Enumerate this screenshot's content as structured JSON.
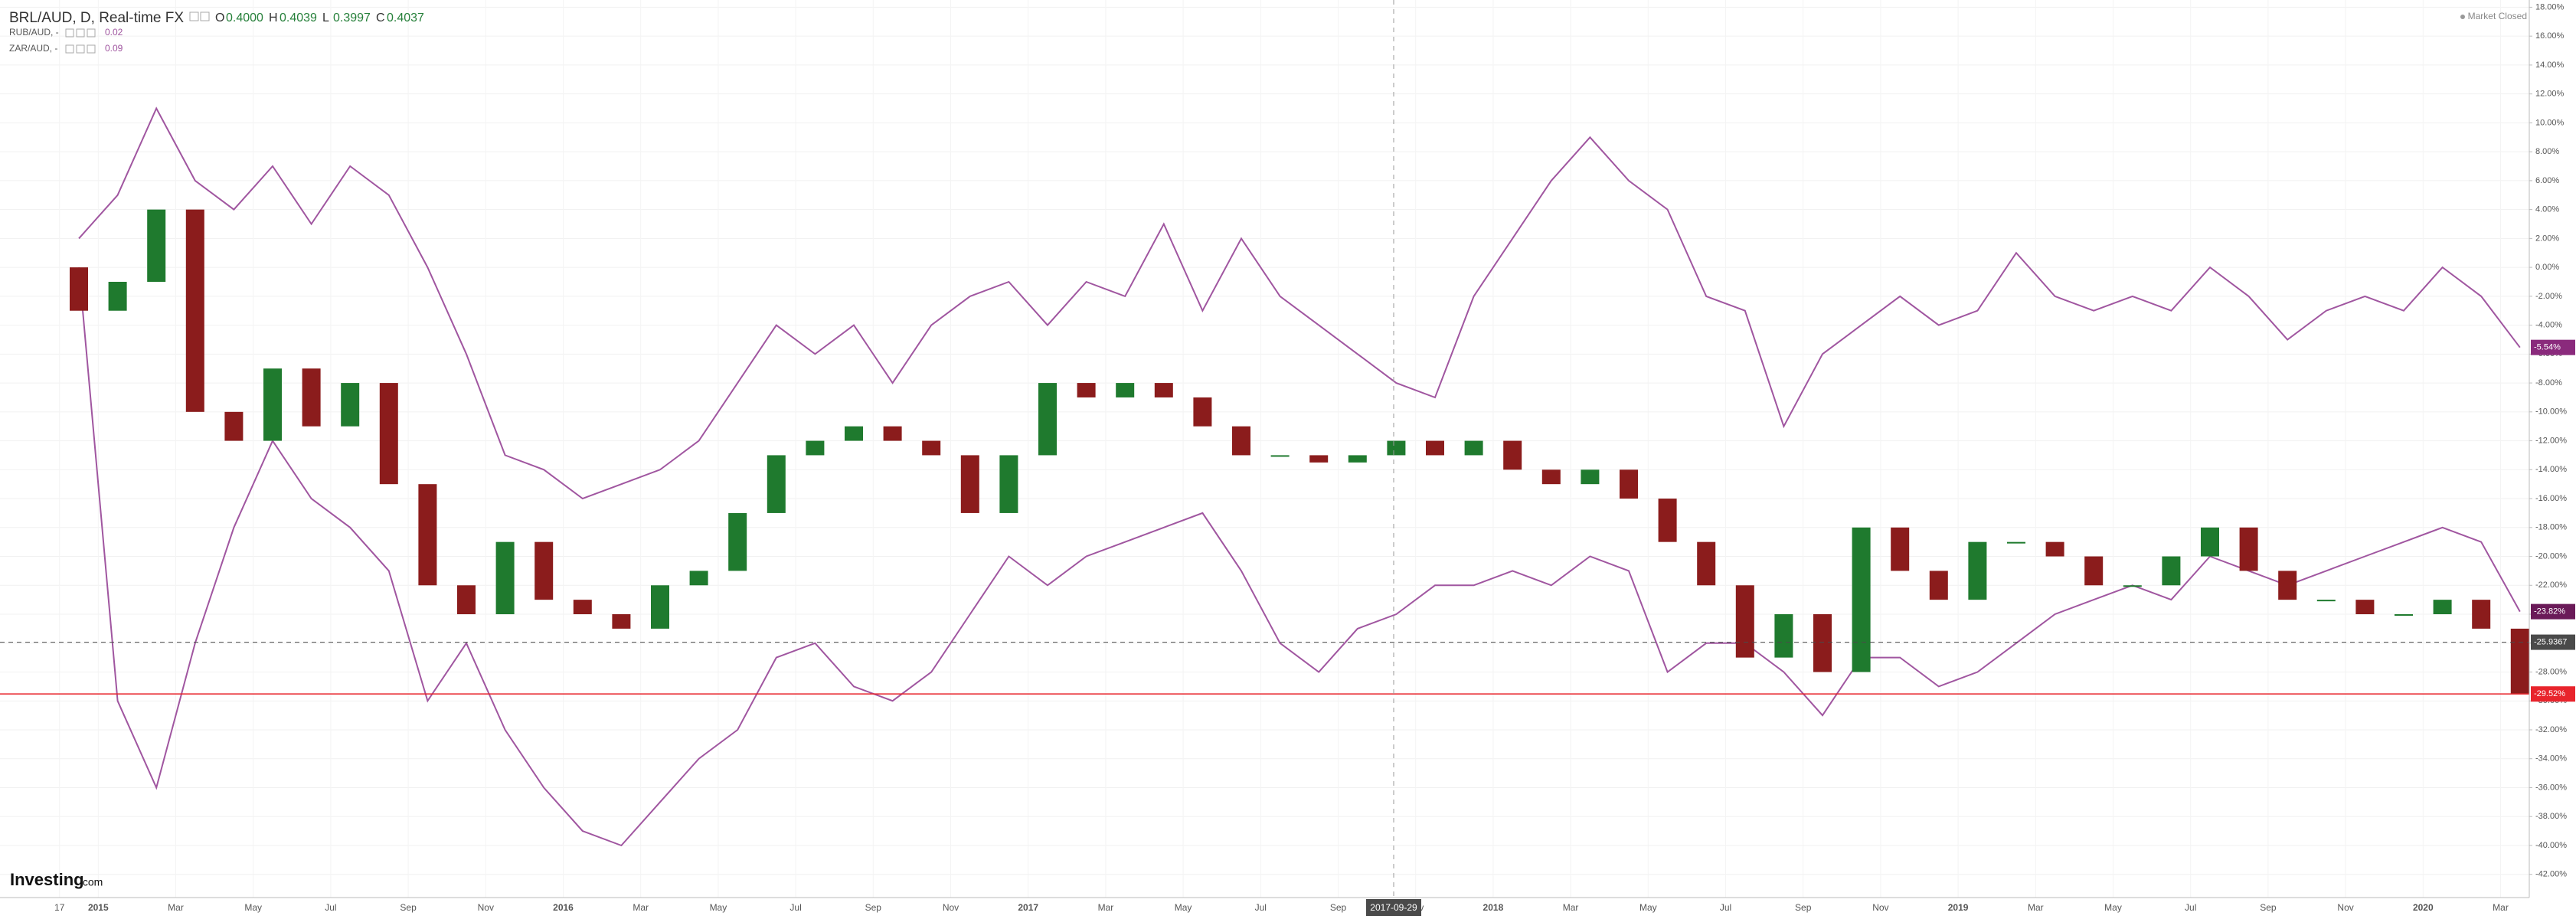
{
  "chart_data": {
    "type": "candlestick",
    "title": "BRL/AUD, D, Real-time FX",
    "ohlc": [
      {
        "label": "O",
        "value": "0.4000"
      },
      {
        "label": "H",
        "value": "0.4039"
      },
      {
        "label": "L",
        "value": "0.3997"
      },
      {
        "label": "C",
        "value": "0.4037"
      }
    ],
    "compare": [
      {
        "name": "RUB/AUD, -",
        "value": "0.02"
      },
      {
        "name": "ZAR/AUD, -",
        "value": "0.09"
      }
    ],
    "status": "Market Closed",
    "logo": "Investing",
    "logo_suffix": ".com",
    "crosshair_label": "2017-09-29",
    "categories": [
      "17",
      "2015",
      null,
      "Mar",
      null,
      "May",
      null,
      "Jul",
      null,
      "Sep",
      null,
      "Nov",
      null,
      "2016",
      null,
      "Mar",
      null,
      "May",
      null,
      "Jul",
      null,
      "Sep",
      null,
      "Nov",
      null,
      "2017",
      null,
      "Mar",
      null,
      "May",
      null,
      "Jul",
      null,
      "Sep",
      null,
      "Nov",
      null,
      "2018",
      null,
      "Mar",
      null,
      "May",
      null,
      "Jul",
      null,
      "Sep",
      null,
      "Nov",
      null,
      "2019",
      null,
      "Mar",
      null,
      "May",
      null,
      "Jul",
      null,
      "Sep",
      null,
      "Nov",
      null,
      "2020",
      null,
      "Mar"
    ],
    "open": [
      0,
      -3,
      -1,
      4,
      -10,
      -12,
      -7,
      -11,
      -8,
      -15,
      -22,
      -24,
      -19,
      -23,
      -24,
      -25,
      -22,
      -21,
      -17,
      -13,
      -12,
      -11,
      -12,
      -13,
      -17,
      -13,
      -8,
      -9,
      -8,
      -9,
      -11,
      -13,
      -13,
      -13.5,
      -13,
      -12,
      -13,
      -12,
      -14,
      -15,
      -14,
      -16,
      -19,
      -22,
      -27,
      -24,
      -28,
      -18,
      -21,
      -23,
      -19,
      -19,
      -20,
      -22,
      -22,
      -20,
      -18,
      -21,
      -23,
      -23,
      -24,
      -24,
      -23,
      -25
    ],
    "close": [
      -3,
      -1,
      4,
      -10,
      -12,
      -7,
      -11,
      -8,
      -15,
      -22,
      -24,
      -19,
      -23,
      -24,
      -25,
      -22,
      -21,
      -17,
      -13,
      -12,
      -11,
      -12,
      -13,
      -17,
      -13,
      -8,
      -9,
      -8,
      -9,
      -11,
      -13,
      -13,
      -13.5,
      -13,
      -12,
      -13,
      -12,
      -14,
      -15,
      -14,
      -16,
      -19,
      -22,
      -27,
      -24,
      -28,
      -18,
      -21,
      -23,
      -19,
      -19,
      -20,
      -22,
      -22,
      -20,
      -18,
      -21,
      -23,
      -23,
      -24,
      -24,
      -23,
      -25,
      -29.52
    ],
    "up_color": "#1f7a2e",
    "down_color": "#8b1c1c",
    "series": [
      {
        "name": "RUB/AUD",
        "color": "#a056a0",
        "values": [
          2,
          5,
          11,
          6,
          4,
          7,
          3,
          7,
          5,
          0,
          -6,
          -13,
          -14,
          -16,
          -15,
          -14,
          -12,
          -8,
          -4,
          -6,
          -4,
          -8,
          -4,
          -2,
          -1,
          -4,
          -1,
          -2,
          3,
          -3,
          2,
          -2,
          -4,
          -6,
          -8,
          -9,
          -2,
          2,
          6,
          9,
          6,
          4,
          -2,
          -3,
          -11,
          -6,
          -4,
          -2,
          -4,
          -3,
          1,
          -2,
          -3,
          -2,
          -3,
          0,
          -2,
          -5,
          -3,
          -2,
          -3,
          0,
          -2,
          -5.54
        ]
      },
      {
        "name": "ZAR/AUD",
        "color": "#a056a0",
        "values": [
          0,
          -30,
          -36,
          -26,
          -18,
          -12,
          -16,
          -18,
          -21,
          -30,
          -26,
          -32,
          -36,
          -39,
          -40,
          -37,
          -34,
          -32,
          -27,
          -26,
          -29,
          -30,
          -28,
          -24,
          -20,
          -22,
          -20,
          -19,
          -18,
          -17,
          -21,
          -26,
          -28,
          -25,
          -24,
          -22,
          -22,
          -21,
          -22,
          -20,
          -21,
          -28,
          -26,
          -26,
          -28,
          -31,
          -27,
          -27,
          -29,
          -28,
          -26,
          -24,
          -23,
          -22,
          -23,
          -20,
          -21,
          -22,
          -21,
          -20,
          -19,
          -18,
          -19,
          -23.82
        ]
      }
    ],
    "price_tags": [
      {
        "value": -5.54,
        "label": "-5.54%",
        "color": "#8a2a7c"
      },
      {
        "value": -23.82,
        "label": "-23.82%",
        "color": "#6a1a58"
      },
      {
        "value": -25.9367,
        "label": "-25.9367",
        "color": "#4a4a4a",
        "line": "dashed"
      },
      {
        "value": -29.52,
        "label": "-29.52%",
        "color": "#e8242c",
        "line": "solid"
      }
    ],
    "ylim": [
      -43.5,
      18.5
    ],
    "yticks": [
      {
        "value": 18,
        "label": "18.00%"
      },
      {
        "value": 16,
        "label": "16.00%"
      },
      {
        "value": 14,
        "label": "14.00%"
      },
      {
        "value": 12,
        "label": "12.00%"
      },
      {
        "value": 10,
        "label": "10.00%"
      },
      {
        "value": 8,
        "label": "8.00%"
      },
      {
        "value": 6,
        "label": "6.00%"
      },
      {
        "value": 4,
        "label": "4.00%"
      },
      {
        "value": 2,
        "label": "2.00%"
      },
      {
        "value": 0,
        "label": "0.00%"
      },
      {
        "value": -2,
        "label": "-2.00%"
      },
      {
        "value": -4,
        "label": "-4.00%"
      },
      {
        "value": -6,
        "label": "-6.00%"
      },
      {
        "value": -8,
        "label": "-8.00%"
      },
      {
        "value": -10,
        "label": "-10.00%"
      },
      {
        "value": -12,
        "label": "-12.00%"
      },
      {
        "value": -14,
        "label": "-14.00%"
      },
      {
        "value": -16,
        "label": "-16.00%"
      },
      {
        "value": -18,
        "label": "-18.00%"
      },
      {
        "value": -20,
        "label": "-20.00%"
      },
      {
        "value": -22,
        "label": "-22.00%"
      },
      {
        "value": -24,
        "label": "-24.00%"
      },
      {
        "value": -26,
        "label": "-26.00%"
      },
      {
        "value": -28,
        "label": "-28.00%"
      },
      {
        "value": -30,
        "label": "-30.00%"
      },
      {
        "value": -32,
        "label": "-32.00%"
      },
      {
        "value": -34,
        "label": "-34.00%"
      },
      {
        "value": -36,
        "label": "-36.00%"
      },
      {
        "value": -38,
        "label": "-38.00%"
      },
      {
        "value": -40,
        "label": "-40.00%"
      },
      {
        "value": -42,
        "label": "-42.00%"
      }
    ],
    "grid": true
  }
}
